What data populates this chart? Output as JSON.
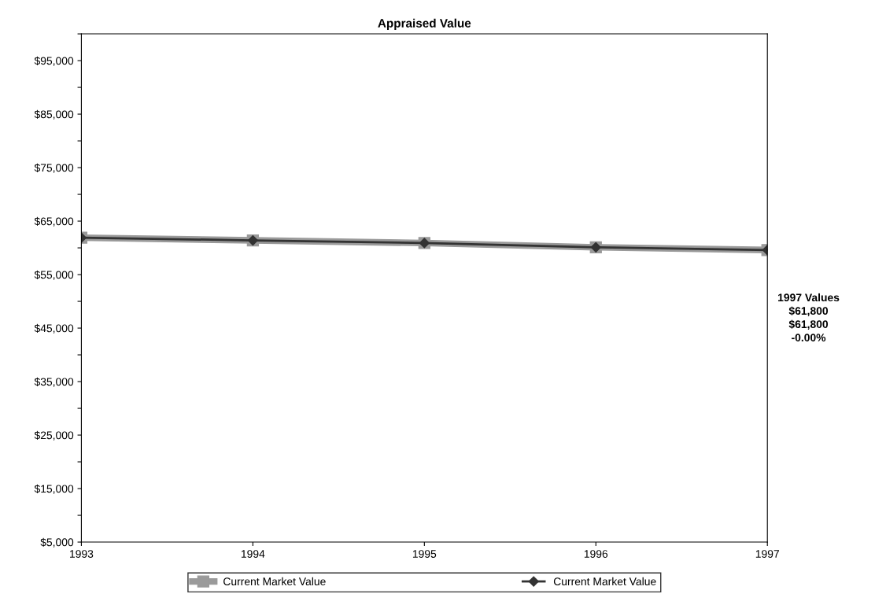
{
  "chart_data": {
    "type": "line",
    "title": "Appraised Value",
    "x": [
      1993,
      1994,
      1995,
      1996,
      1997
    ],
    "series": [
      {
        "name": "Current Market Value",
        "color": "#9a9a9a",
        "marker": "square",
        "values": [
          61900,
          61400,
          60900,
          60100,
          59600
        ]
      },
      {
        "name": "Current Market Value",
        "color": "#333333",
        "marker": "diamond",
        "values": [
          61900,
          61400,
          60900,
          60100,
          59600
        ]
      }
    ],
    "xlim": [
      1993,
      1997
    ],
    "xticks": [
      1993,
      1994,
      1995,
      1996,
      1997
    ],
    "ylim": [
      5000,
      100000
    ],
    "yticks": [
      {
        "value": 5000,
        "label": "$5,000"
      },
      {
        "value": 10000,
        "label": null
      },
      {
        "value": 15000,
        "label": "$15,000"
      },
      {
        "value": 20000,
        "label": null
      },
      {
        "value": 25000,
        "label": "$25,000"
      },
      {
        "value": 30000,
        "label": null
      },
      {
        "value": 35000,
        "label": "$35,000"
      },
      {
        "value": 40000,
        "label": null
      },
      {
        "value": 45000,
        "label": "$45,000"
      },
      {
        "value": 50000,
        "label": null
      },
      {
        "value": 55000,
        "label": "$55,000"
      },
      {
        "value": 60000,
        "label": null
      },
      {
        "value": 65000,
        "label": "$65,000"
      },
      {
        "value": 70000,
        "label": null
      },
      {
        "value": 75000,
        "label": "$75,000"
      },
      {
        "value": 80000,
        "label": null
      },
      {
        "value": 85000,
        "label": "$85,000"
      },
      {
        "value": 90000,
        "label": null
      },
      {
        "value": 95000,
        "label": "$95,000"
      },
      {
        "value": 100000,
        "label": null
      }
    ],
    "annotations": [
      "1997 Values",
      "$61,800",
      "$61,800",
      "-0.00%"
    ],
    "legend": "bottom",
    "grid": false,
    "line_style": "solid"
  }
}
